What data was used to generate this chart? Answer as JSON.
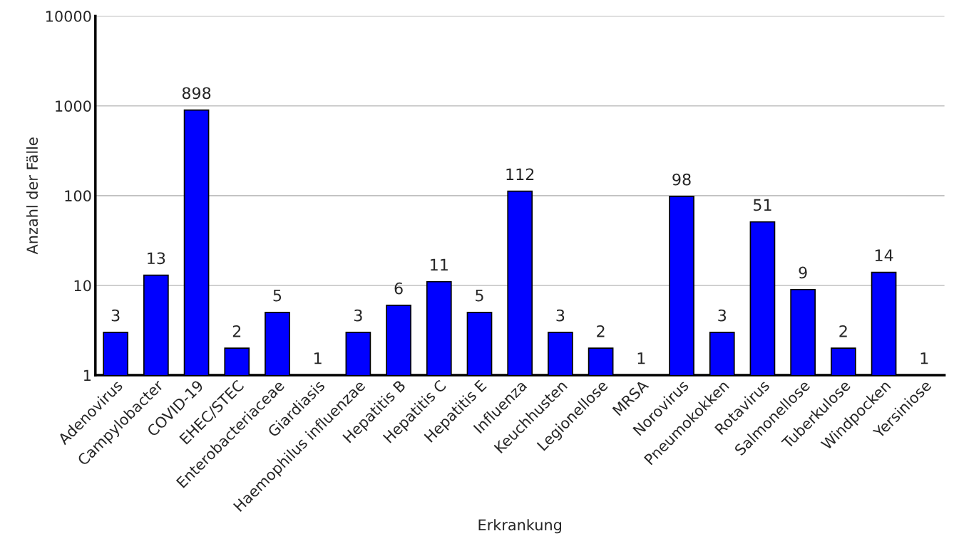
{
  "chart_data": {
    "type": "bar",
    "xlabel": "Erkrankung",
    "ylabel": "Anzahl der Fälle",
    "categories": [
      "Adenovirus",
      "Campylobacter",
      "COVID-19",
      "EHEC/STEC",
      "Enterobacteriaceae",
      "Giardiasis",
      "Haemophilus influenzae",
      "Hepatitis B",
      "Hepatitis C",
      "Hepatitis E",
      "Influenza",
      "Keuchhusten",
      "Legionellose",
      "MRSA",
      "Norovirus",
      "Pneumokokken",
      "Rotavirus",
      "Salmonellose",
      "Tuberkulose",
      "Windpocken",
      "Yersiniose"
    ],
    "values": [
      3,
      13,
      898,
      2,
      5,
      1,
      3,
      6,
      11,
      5,
      112,
      3,
      2,
      1,
      98,
      3,
      51,
      9,
      2,
      14,
      1
    ],
    "color": "#0000ff",
    "log": true,
    "ylim": [
      1,
      10000
    ],
    "yticks": [
      1,
      10,
      100,
      1000,
      10000
    ],
    "grid": "y",
    "data_labels": true,
    "legend": false
  }
}
